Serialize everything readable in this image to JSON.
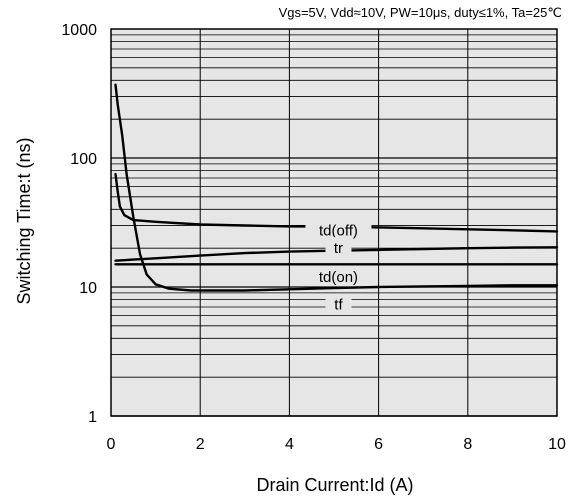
{
  "chart_data": {
    "type": "line",
    "conditions": "Vgs=5V, Vdd≈10V, PW=10μs, duty≤1%, Ta=25℃",
    "xlabel": "Drain Current:Id  (A)",
    "ylabel": "Switching Time:t  (ns)",
    "xlim": [
      0,
      10
    ],
    "ylim": [
      1,
      1000
    ],
    "yscale": "log",
    "grid": true,
    "x_ticks": [
      "0",
      "2",
      "4",
      "6",
      "8",
      "10"
    ],
    "y_ticks": [
      "1",
      "10",
      "100",
      "1000"
    ],
    "series": [
      {
        "name": "td(off)",
        "x": [
          0.1,
          0.15,
          0.2,
          0.3,
          0.5,
          1.0,
          2.0,
          3.0,
          4.0,
          5.0,
          6.0,
          7.0,
          8.0,
          9.0,
          10.0
        ],
        "y": [
          75,
          55,
          42,
          36,
          33,
          32,
          30.5,
          30,
          29.5,
          29.5,
          29,
          28.5,
          28,
          27.5,
          27
        ]
      },
      {
        "name": "tr",
        "x": [
          0.1,
          0.5,
          1.0,
          2.0,
          3.0,
          4.0,
          5.0,
          6.0,
          7.0,
          8.0,
          9.0,
          10.0
        ],
        "y": [
          16,
          16.3,
          16.7,
          17.5,
          18.3,
          18.8,
          19.1,
          19.4,
          19.7,
          20,
          20.2,
          20.3
        ]
      },
      {
        "name": "td(on)",
        "x": [
          0.1,
          2.0,
          4.0,
          6.0,
          8.0,
          10.0
        ],
        "y": [
          15,
          15,
          15,
          15,
          15,
          15
        ]
      },
      {
        "name": "tf",
        "x": [
          0.1,
          0.15,
          0.25,
          0.35,
          0.5,
          0.65,
          0.8,
          1.0,
          1.3,
          1.8,
          3.0,
          4.0,
          5.0,
          6.0,
          7.0,
          8.0,
          9.0,
          10.0
        ],
        "y": [
          370,
          260,
          150,
          75,
          35,
          18,
          12.5,
          10.5,
          9.7,
          9.4,
          9.4,
          9.6,
          9.8,
          10,
          10.1,
          10.2,
          10.3,
          10.3
        ]
      }
    ]
  },
  "colors": {
    "plot_bg": "#e6e6e6",
    "line": "#000000",
    "grid": "#000000"
  }
}
